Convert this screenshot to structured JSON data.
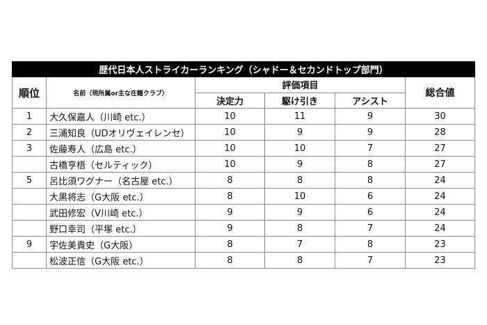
{
  "title": "歴代日本人ストライカーランキング（シャドー＆セカンドトップ部門）",
  "headers": {
    "rank": "順位",
    "name": "名前（現所属or主な在籍クラブ）",
    "eval_group": "評価項目",
    "decision": "決定力",
    "off_ball": "駆け引き",
    "assist": "アシスト",
    "total": "総合値"
  },
  "rows": [
    {
      "rank": "1",
      "name": "大久保嘉人（川崎 etc.）",
      "decision": "10",
      "off_ball": "11",
      "assist": "9",
      "total": "30"
    },
    {
      "rank": "2",
      "name": "三浦知良（UDオリヴェイレンセ）",
      "decision": "10",
      "off_ball": "9",
      "assist": "9",
      "total": "28"
    },
    {
      "rank": "3",
      "name": "佐藤寿人（広島 etc.）",
      "decision": "10",
      "off_ball": "10",
      "assist": "7",
      "total": "27"
    },
    {
      "rank": "",
      "name": "古橋亨梧（セルティック）",
      "decision": "10",
      "off_ball": "9",
      "assist": "8",
      "total": "27"
    },
    {
      "rank": "5",
      "name": "呂比須ワグナー（名古屋 etc.）",
      "decision": "8",
      "off_ball": "8",
      "assist": "8",
      "total": "24"
    },
    {
      "rank": "",
      "name": "大黒将志（G大阪 etc.）",
      "decision": "8",
      "off_ball": "10",
      "assist": "6",
      "total": "24"
    },
    {
      "rank": "",
      "name": "武田修宏（V川崎 etc.）",
      "decision": "9",
      "off_ball": "9",
      "assist": "6",
      "total": "24"
    },
    {
      "rank": "",
      "name": "野口幸司（平塚 etc.）",
      "decision": "9",
      "off_ball": "8",
      "assist": "7",
      "total": "24"
    },
    {
      "rank": "9",
      "name": "宇佐美貴史（G大阪）",
      "decision": "8",
      "off_ball": "7",
      "assist": "8",
      "total": "23"
    },
    {
      "rank": "",
      "name": "松波正信（G大阪 etc.）",
      "decision": "8",
      "off_ball": "8",
      "assist": "7",
      "total": "23"
    }
  ]
}
